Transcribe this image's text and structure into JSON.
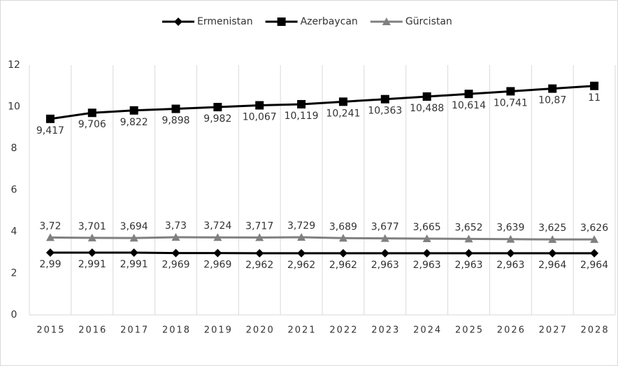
{
  "chart_data": {
    "type": "line",
    "categories": [
      "2015",
      "2016",
      "2017",
      "2018",
      "2019",
      "2020",
      "2021",
      "2022",
      "2023",
      "2024",
      "2025",
      "2026",
      "2027",
      "2028"
    ],
    "series": [
      {
        "name": "Ermenistan",
        "color": "#000000",
        "marker": "diamond",
        "label_position": "below",
        "values": [
          2.99,
          2.991,
          2.991,
          2.969,
          2.969,
          2.962,
          2.962,
          2.962,
          2.963,
          2.963,
          2.963,
          2.963,
          2.964,
          2.964
        ],
        "value_labels": [
          "2,99",
          "2,991",
          "2,991",
          "2,969",
          "2,969",
          "2,962",
          "2,962",
          "2,962",
          "2,963",
          "2,963",
          "2,963",
          "2,963",
          "2,964",
          "2,964"
        ]
      },
      {
        "name": "Azerbaycan",
        "color": "#000000",
        "marker": "square",
        "label_position": "below",
        "values": [
          9.417,
          9.706,
          9.822,
          9.898,
          9.982,
          10.067,
          10.119,
          10.241,
          10.363,
          10.488,
          10.614,
          10.741,
          10.87,
          11
        ],
        "value_labels": [
          "9,417",
          "9,706",
          "9,822",
          "9,898",
          "9,982",
          "10,067",
          "10,119",
          "10,241",
          "10,363",
          "10,488",
          "10,614",
          "10,741",
          "10,87",
          "11"
        ]
      },
      {
        "name": "Gürcistan",
        "color": "#808080",
        "marker": "triangle",
        "label_position": "above",
        "values": [
          3.72,
          3.701,
          3.694,
          3.73,
          3.724,
          3.717,
          3.729,
          3.689,
          3.677,
          3.665,
          3.652,
          3.639,
          3.625,
          3.626
        ],
        "value_labels": [
          "3,72",
          "3,701",
          "3,694",
          "3,73",
          "3,724",
          "3,717",
          "3,729",
          "3,689",
          "3,677",
          "3,665",
          "3,652",
          "3,639",
          "3,625",
          "3,626"
        ]
      }
    ],
    "ylim": [
      0,
      12
    ],
    "yticks": [
      0,
      2,
      4,
      6,
      8,
      10,
      12
    ],
    "grid": "x",
    "legend": "top"
  }
}
